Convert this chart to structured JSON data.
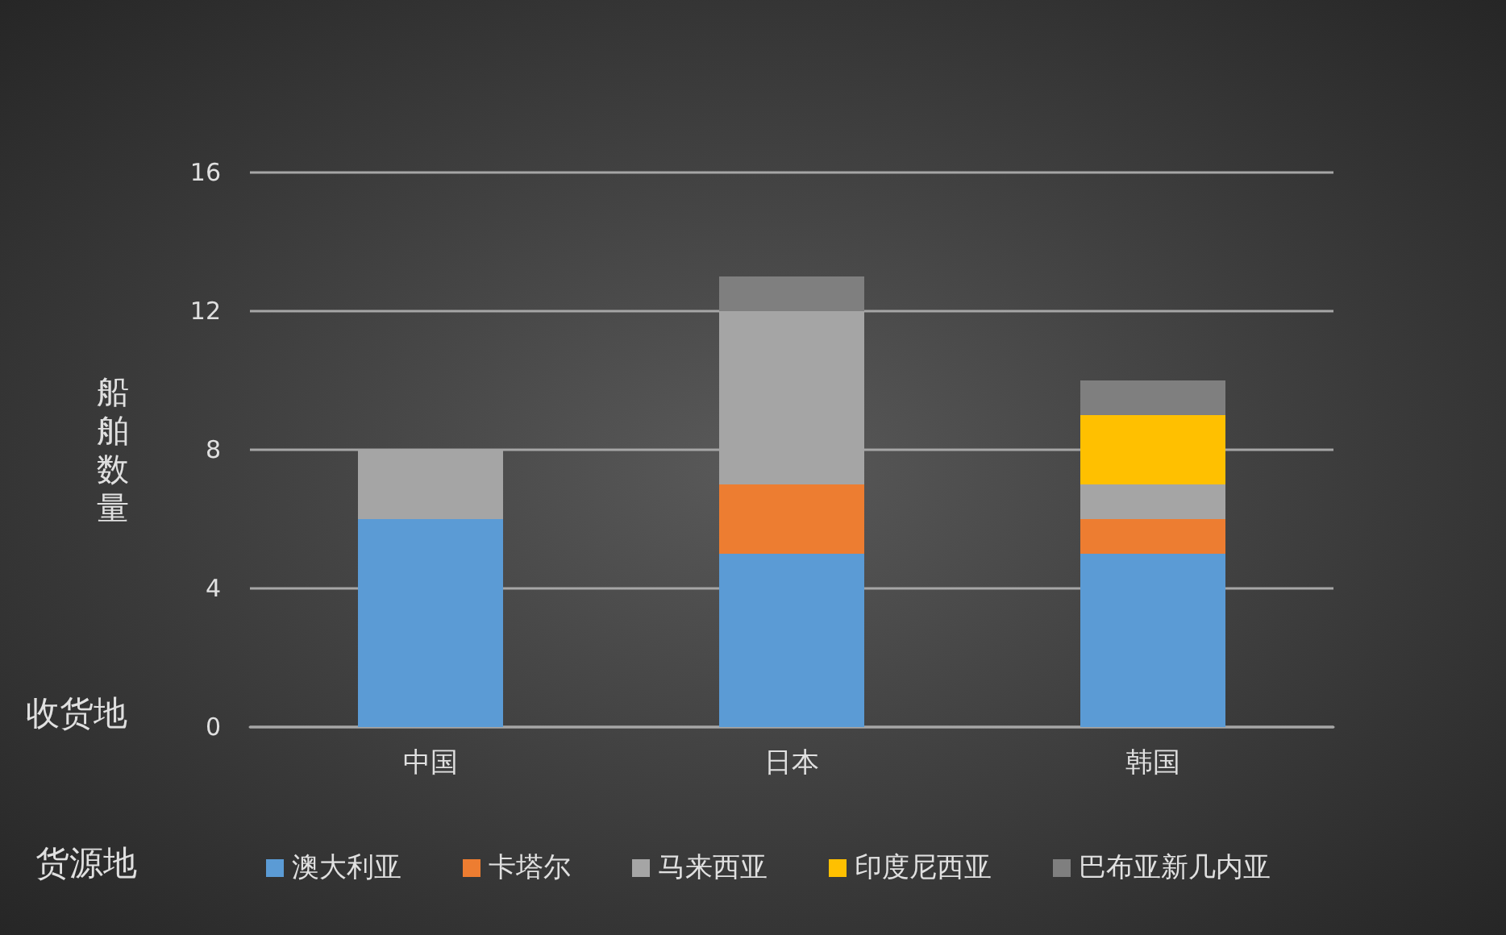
{
  "chart_data": {
    "type": "bar",
    "stacked": true,
    "xlabel": "收货地",
    "ylabel": "船舶数量",
    "legend_title": "货源地",
    "categories": [
      "中国",
      "日本",
      "韩国"
    ],
    "series": [
      {
        "name": "澳大利亚",
        "color": "#5b9bd5",
        "values": [
          6,
          5,
          5
        ]
      },
      {
        "name": "卡塔尔",
        "color": "#ed7d31",
        "values": [
          0,
          2,
          1
        ]
      },
      {
        "name": "马来西亚",
        "color": "#a5a5a5",
        "values": [
          2,
          5,
          1
        ]
      },
      {
        "name": "印度尼西亚",
        "color": "#ffc000",
        "values": [
          0,
          0,
          2
        ]
      },
      {
        "name": "巴布亚新几内亚",
        "color": "#7f7f7f",
        "values": [
          0,
          1,
          1
        ]
      }
    ],
    "ylim": [
      0,
      16
    ],
    "yticks": [
      0,
      4,
      8,
      12,
      16
    ],
    "grid": "y",
    "legend": "bottom"
  }
}
